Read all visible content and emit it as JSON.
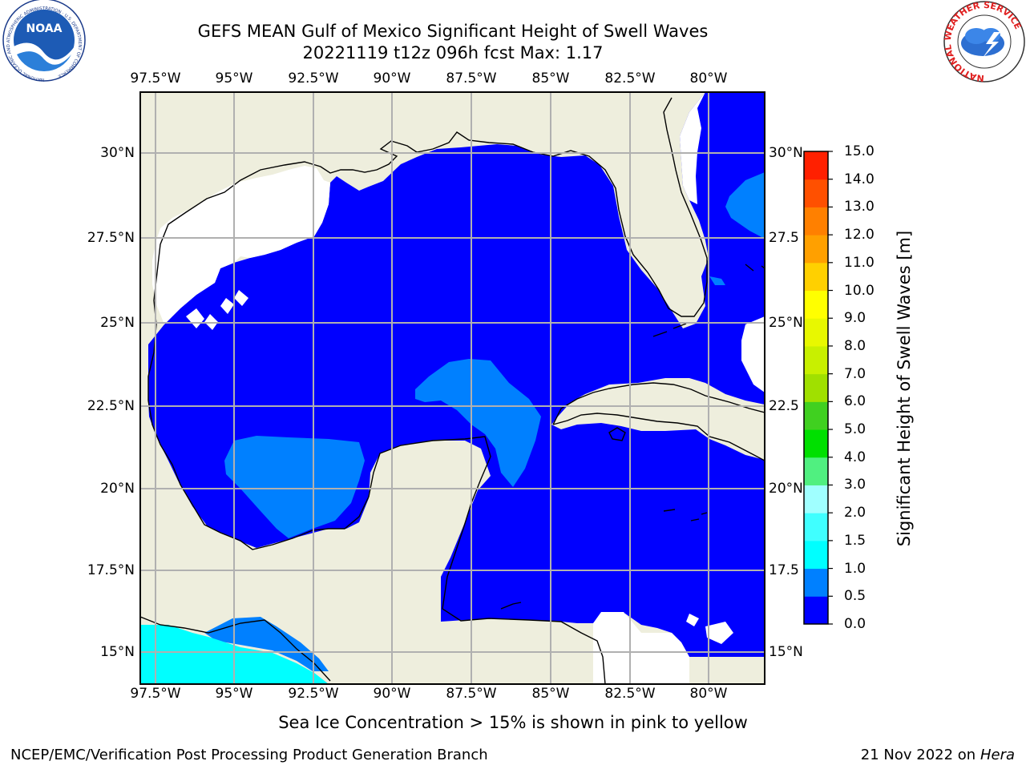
{
  "header": {
    "title_line1": "GEFS MEAN Gulf of Mexico Significant Height of Swell Waves",
    "title_line2": "20221119 t12z 096h fcst   Max: 1.17",
    "noaa_logo_text": "NOAA",
    "noaa_ring_text": "NATIONAL OCEANIC AND ATMOSPHERIC ADMINISTRATION · U.S. DEPARTMENT OF COMMERCE",
    "nws_ring_text": "NATIONAL WEATHER SERVICE"
  },
  "map": {
    "lon_labels_top": [
      "97.5°W",
      "95°W",
      "92.5°W",
      "90°W",
      "87.5°W",
      "85°W",
      "82.5°W",
      "80°W"
    ],
    "lon_labels_bottom": [
      "97.5°W",
      "95°W",
      "92.5°W",
      "90°W",
      "87.5°W",
      "85°W",
      "82.5°W",
      "80°W"
    ],
    "lat_labels_left": [
      "30°N",
      "27.5°N",
      "25°N",
      "22.5°N",
      "20°N",
      "17.5°N",
      "15°N"
    ],
    "lat_labels_right": [
      "30°N",
      "27.5",
      "25°N",
      "22.5",
      "20°N",
      "17.5",
      "15°N"
    ],
    "colors": {
      "land": "#eeeedd",
      "no_data": "#ffffff",
      "level_0_0_5": "#0000ff",
      "level_0_5_1_0": "#0080ff",
      "level_1_0_1_5": "#00ffff",
      "grid": "#b0b0b0"
    }
  },
  "colorbar": {
    "label": "Significant Height of Swell Waves [m]",
    "tick_labels": [
      "0.0",
      "0.5",
      "1.0",
      "1.5",
      "2.0",
      "3.0",
      "4.0",
      "5.0",
      "6.0",
      "7.0",
      "8.0",
      "9.0",
      "10.0",
      "11.0",
      "12.0",
      "13.0",
      "14.0",
      "15.0"
    ],
    "bands": [
      {
        "from": 0.0,
        "to": 0.5,
        "color": "#0000ff"
      },
      {
        "from": 0.5,
        "to": 1.0,
        "color": "#0080ff"
      },
      {
        "from": 1.0,
        "to": 1.5,
        "color": "#00ffff"
      },
      {
        "from": 1.5,
        "to": 2.0,
        "color": "#40ffff"
      },
      {
        "from": 2.0,
        "to": 3.0,
        "color": "#a0ffff"
      },
      {
        "from": 3.0,
        "to": 4.0,
        "color": "#50f080"
      },
      {
        "from": 4.0,
        "to": 5.0,
        "color": "#00e000"
      },
      {
        "from": 5.0,
        "to": 6.0,
        "color": "#40d020"
      },
      {
        "from": 6.0,
        "to": 7.0,
        "color": "#a0e000"
      },
      {
        "from": 7.0,
        "to": 8.0,
        "color": "#c8f000"
      },
      {
        "from": 8.0,
        "to": 9.0,
        "color": "#e8f800"
      },
      {
        "from": 9.0,
        "to": 10.0,
        "color": "#ffff00"
      },
      {
        "from": 10.0,
        "to": 11.0,
        "color": "#ffd000"
      },
      {
        "from": 11.0,
        "to": 12.0,
        "color": "#ffa000"
      },
      {
        "from": 12.0,
        "to": 13.0,
        "color": "#ff8000"
      },
      {
        "from": 13.0,
        "to": 14.0,
        "color": "#ff5000"
      },
      {
        "from": 14.0,
        "to": 15.0,
        "color": "#ff2000"
      }
    ]
  },
  "footer": {
    "note": "Sea Ice Concentration > 15% is shown in pink to yellow",
    "left": "NCEP/EMC/Verification Post Processing Product Generation Branch",
    "date_text": "21 Nov 2022 on",
    "machine": "Hera"
  }
}
